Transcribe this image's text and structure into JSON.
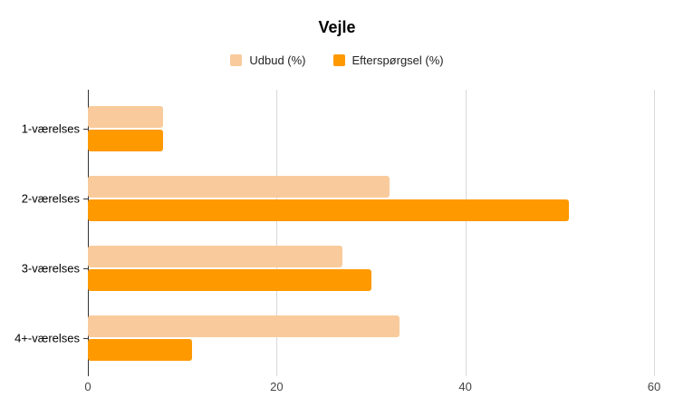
{
  "chart_data": {
    "type": "bar",
    "orientation": "horizontal",
    "title": "Vejle",
    "categories": [
      "1-værelses",
      "2-værelses",
      "3-værelses",
      "4+-værelses"
    ],
    "series": [
      {
        "name": "Udbud (%)",
        "color": "#f9cb9c",
        "values": [
          8,
          32,
          27,
          33
        ]
      },
      {
        "name": "Efterspørgsel (%)",
        "color": "#ff9900",
        "values": [
          8,
          51,
          30,
          11
        ]
      }
    ],
    "xlim": [
      0,
      60
    ],
    "x_ticks": [
      0,
      20,
      40,
      60
    ],
    "grid": true,
    "legend_position": "top",
    "axis_color": "#333333",
    "grid_color": "#d9d9d9"
  }
}
